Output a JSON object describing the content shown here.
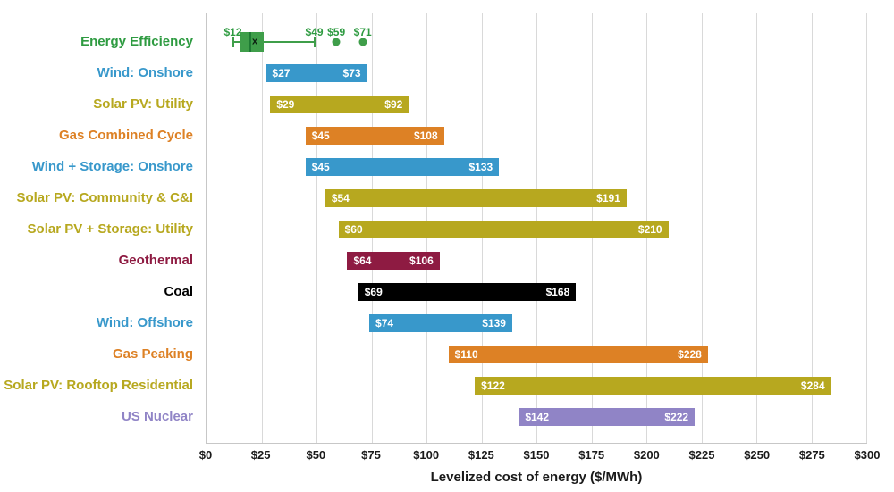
{
  "chart_data": {
    "type": "bar",
    "subtype": "horizontal-range-bars-with-boxplot",
    "title": "",
    "xlabel": "Levelized cost of energy ($/MWh)",
    "xlim": [
      0,
      300
    ],
    "grid": "vertical",
    "legend": "none",
    "x_ticks": [
      {
        "value": 0,
        "label": "$0"
      },
      {
        "value": 25,
        "label": "$25"
      },
      {
        "value": 50,
        "label": "$50"
      },
      {
        "value": 75,
        "label": "$75"
      },
      {
        "value": 100,
        "label": "$100"
      },
      {
        "value": 125,
        "label": "$125"
      },
      {
        "value": 150,
        "label": "$150"
      },
      {
        "value": 175,
        "label": "$175"
      },
      {
        "value": 200,
        "label": "$200"
      },
      {
        "value": 225,
        "label": "$225"
      },
      {
        "value": 250,
        "label": "$250"
      },
      {
        "value": 275,
        "label": "$275"
      },
      {
        "value": 300,
        "label": "$300"
      }
    ],
    "boxplot_row": {
      "label": "Energy Efficiency",
      "label_color": "#2e9b41",
      "color": "#3f9e4a",
      "median_color": "#1e7a33",
      "whisker_low": 12,
      "q1": 15,
      "median": 20,
      "mean": 22,
      "mean_marker": "x",
      "q3": 26,
      "whisker_high": 49,
      "outliers": [
        59,
        71
      ],
      "annotations": [
        {
          "value": 12,
          "label": "$12"
        },
        {
          "value": 49,
          "label": "$49"
        },
        {
          "value": 59,
          "label": "$59"
        },
        {
          "value": 71,
          "label": "$71"
        }
      ]
    },
    "rows": [
      {
        "label": "Wind: Onshore",
        "min": 27,
        "max": 73,
        "min_label": "$27",
        "max_label": "$73",
        "color": "#3898cb"
      },
      {
        "label": "Solar PV: Utility",
        "min": 29,
        "max": 92,
        "min_label": "$29",
        "max_label": "$92",
        "color": "#b7a81f"
      },
      {
        "label": "Gas Combined Cycle",
        "min": 45,
        "max": 108,
        "min_label": "$45",
        "max_label": "$108",
        "color": "#dd8125"
      },
      {
        "label": "Wind + Storage: Onshore",
        "min": 45,
        "max": 133,
        "min_label": "$45",
        "max_label": "$133",
        "color": "#3898cb"
      },
      {
        "label": "Solar PV: Community & C&I",
        "min": 54,
        "max": 191,
        "min_label": "$54",
        "max_label": "$191",
        "color": "#b7a81f"
      },
      {
        "label": "Solar PV + Storage: Utility",
        "min": 60,
        "max": 210,
        "min_label": "$60",
        "max_label": "$210",
        "color": "#b7a81f"
      },
      {
        "label": "Geothermal",
        "min": 64,
        "max": 106,
        "min_label": "$64",
        "max_label": "$106",
        "color": "#8e1b42"
      },
      {
        "label": "Coal",
        "min": 69,
        "max": 168,
        "min_label": "$69",
        "max_label": "$168",
        "color": "#000000"
      },
      {
        "label": "Wind: Offshore",
        "min": 74,
        "max": 139,
        "min_label": "$74",
        "max_label": "$139",
        "color": "#3898cb"
      },
      {
        "label": "Gas Peaking",
        "min": 110,
        "max": 228,
        "min_label": "$110",
        "max_label": "$228",
        "color": "#dd8125"
      },
      {
        "label": "Solar PV: Rooftop Residential",
        "min": 122,
        "max": 284,
        "min_label": "$122",
        "max_label": "$284",
        "color": "#b7a81f"
      },
      {
        "label": "US Nuclear",
        "min": 142,
        "max": 222,
        "min_label": "$142",
        "max_label": "$222",
        "color": "#9084c6"
      }
    ]
  }
}
